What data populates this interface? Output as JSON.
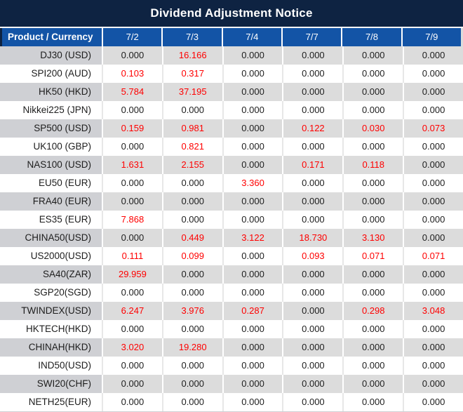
{
  "title": "Dividend Adjustment Notice",
  "colors": {
    "title_bar_bg": "#0e2342",
    "header_bg": "#1354a6",
    "header_text": "#ffffff",
    "stripe_product_bg": "#cfd0d4",
    "stripe_value_bg": "#dcdcdc",
    "value_text": "#1d1d1d",
    "red_value_text": "#ff0000"
  },
  "table": {
    "product_header": "Product / Currency",
    "date_columns": [
      "7/2",
      "7/3",
      "7/4",
      "7/7",
      "7/8",
      "7/9"
    ],
    "rows": [
      {
        "product": "DJ30 (USD)",
        "values": [
          "0.000",
          "16.166",
          "0.000",
          "0.000",
          "0.000",
          "0.000"
        ],
        "red": [
          false,
          true,
          false,
          false,
          false,
          false
        ]
      },
      {
        "product": "SPI200 (AUD)",
        "values": [
          "0.103",
          "0.317",
          "0.000",
          "0.000",
          "0.000",
          "0.000"
        ],
        "red": [
          true,
          true,
          false,
          false,
          false,
          false
        ]
      },
      {
        "product": "HK50 (HKD)",
        "values": [
          "5.784",
          "37.195",
          "0.000",
          "0.000",
          "0.000",
          "0.000"
        ],
        "red": [
          true,
          true,
          false,
          false,
          false,
          false
        ]
      },
      {
        "product": "Nikkei225 (JPN)",
        "values": [
          "0.000",
          "0.000",
          "0.000",
          "0.000",
          "0.000",
          "0.000"
        ],
        "red": [
          false,
          false,
          false,
          false,
          false,
          false
        ]
      },
      {
        "product": "SP500 (USD)",
        "values": [
          "0.159",
          "0.981",
          "0.000",
          "0.122",
          "0.030",
          "0.073"
        ],
        "red": [
          true,
          true,
          false,
          true,
          true,
          true
        ]
      },
      {
        "product": "UK100 (GBP)",
        "values": [
          "0.000",
          "0.821",
          "0.000",
          "0.000",
          "0.000",
          "0.000"
        ],
        "red": [
          false,
          true,
          false,
          false,
          false,
          false
        ]
      },
      {
        "product": "NAS100 (USD)",
        "values": [
          "1.631",
          "2.155",
          "0.000",
          "0.171",
          "0.118",
          "0.000"
        ],
        "red": [
          true,
          true,
          false,
          true,
          true,
          false
        ]
      },
      {
        "product": "EU50 (EUR)",
        "values": [
          "0.000",
          "0.000",
          "3.360",
          "0.000",
          "0.000",
          "0.000"
        ],
        "red": [
          false,
          false,
          true,
          false,
          false,
          false
        ]
      },
      {
        "product": "FRA40 (EUR)",
        "values": [
          "0.000",
          "0.000",
          "0.000",
          "0.000",
          "0.000",
          "0.000"
        ],
        "red": [
          false,
          false,
          false,
          false,
          false,
          false
        ]
      },
      {
        "product": "ES35 (EUR)",
        "values": [
          "7.868",
          "0.000",
          "0.000",
          "0.000",
          "0.000",
          "0.000"
        ],
        "red": [
          true,
          false,
          false,
          false,
          false,
          false
        ]
      },
      {
        "product": "CHINA50(USD)",
        "values": [
          "0.000",
          "0.449",
          "3.122",
          "18.730",
          "3.130",
          "0.000"
        ],
        "red": [
          false,
          true,
          true,
          true,
          true,
          false
        ]
      },
      {
        "product": "US2000(USD)",
        "values": [
          "0.111",
          "0.099",
          "0.000",
          "0.093",
          "0.071",
          "0.071"
        ],
        "red": [
          true,
          true,
          false,
          true,
          true,
          true
        ]
      },
      {
        "product": "SA40(ZAR)",
        "values": [
          "29.959",
          "0.000",
          "0.000",
          "0.000",
          "0.000",
          "0.000"
        ],
        "red": [
          true,
          false,
          false,
          false,
          false,
          false
        ]
      },
      {
        "product": "SGP20(SGD)",
        "values": [
          "0.000",
          "0.000",
          "0.000",
          "0.000",
          "0.000",
          "0.000"
        ],
        "red": [
          false,
          false,
          false,
          false,
          false,
          false
        ]
      },
      {
        "product": "TWINDEX(USD)",
        "values": [
          "6.247",
          "3.976",
          "0.287",
          "0.000",
          "0.298",
          "3.048"
        ],
        "red": [
          true,
          true,
          true,
          false,
          true,
          true
        ]
      },
      {
        "product": "HKTECH(HKD)",
        "values": [
          "0.000",
          "0.000",
          "0.000",
          "0.000",
          "0.000",
          "0.000"
        ],
        "red": [
          false,
          false,
          false,
          false,
          false,
          false
        ]
      },
      {
        "product": "CHINAH(HKD)",
        "values": [
          "3.020",
          "19.280",
          "0.000",
          "0.000",
          "0.000",
          "0.000"
        ],
        "red": [
          true,
          true,
          false,
          false,
          false,
          false
        ]
      },
      {
        "product": "IND50(USD)",
        "values": [
          "0.000",
          "0.000",
          "0.000",
          "0.000",
          "0.000",
          "0.000"
        ],
        "red": [
          false,
          false,
          false,
          false,
          false,
          false
        ]
      },
      {
        "product": "SWI20(CHF)",
        "values": [
          "0.000",
          "0.000",
          "0.000",
          "0.000",
          "0.000",
          "0.000"
        ],
        "red": [
          false,
          false,
          false,
          false,
          false,
          false
        ]
      },
      {
        "product": "NETH25(EUR)",
        "values": [
          "0.000",
          "0.000",
          "0.000",
          "0.000",
          "0.000",
          "0.000"
        ],
        "red": [
          false,
          false,
          false,
          false,
          false,
          false
        ]
      }
    ]
  }
}
